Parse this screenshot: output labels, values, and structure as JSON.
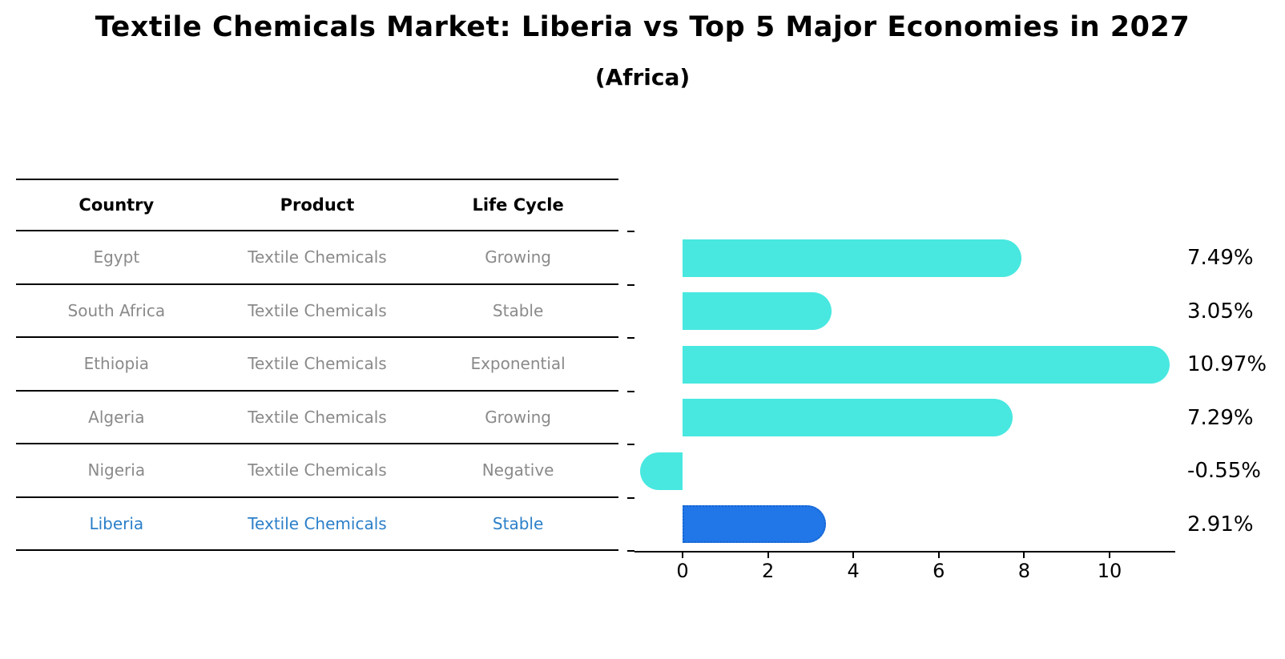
{
  "title": "Textile Chemicals Market: Liberia vs Top 5 Major Economies in 2027",
  "subtitle": "(Africa)",
  "table": {
    "columns": [
      "Country",
      "Product",
      "Life Cycle"
    ],
    "rows": [
      {
        "country": "Egypt",
        "product": "Textile Chemicals",
        "life_cycle": "Growing",
        "highlight": false
      },
      {
        "country": "South Africa",
        "product": "Textile Chemicals",
        "life_cycle": "Stable",
        "highlight": false
      },
      {
        "country": "Ethiopia",
        "product": "Textile Chemicals",
        "life_cycle": "Exponential",
        "highlight": false
      },
      {
        "country": "Algeria",
        "product": "Textile Chemicals",
        "life_cycle": "Growing",
        "highlight": false
      },
      {
        "country": "Nigeria",
        "product": "Textile Chemicals",
        "life_cycle": "Negative",
        "highlight": false
      },
      {
        "country": "Liberia",
        "product": "Textile Chemicals",
        "life_cycle": "Stable",
        "highlight": true
      }
    ]
  },
  "chart_data": {
    "type": "bar",
    "orientation": "horizontal",
    "title": "Textile Chemicals Market: Liberia vs Top 5 Major Economies in 2027",
    "subtitle": "(Africa)",
    "categories": [
      "Egypt",
      "South Africa",
      "Ethiopia",
      "Algeria",
      "Nigeria",
      "Liberia"
    ],
    "values": [
      7.49,
      3.05,
      10.97,
      7.29,
      -0.55,
      2.91
    ],
    "value_labels": [
      "7.49%",
      "3.05%",
      "10.97%",
      "7.29%",
      "-0.55%",
      "2.91%"
    ],
    "x_ticks": [
      0,
      2,
      4,
      6,
      8,
      10
    ],
    "xlim": [
      -1.13,
      11.55
    ],
    "grid": false,
    "legend": false,
    "bar_color": "#48e8e0",
    "highlight_index": 5,
    "highlight_color": "#2176e8",
    "highlight_border_color": "#1665ce"
  },
  "colors": {
    "text": "#000000",
    "muted_text": "#8a8a8a",
    "highlight_text": "#2b7fc9"
  }
}
